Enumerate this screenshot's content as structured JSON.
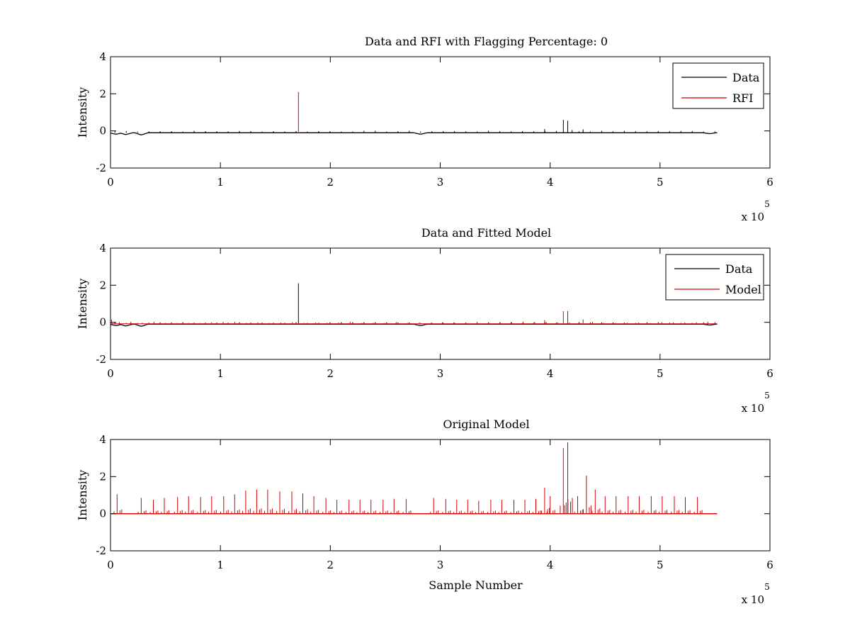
{
  "chart_data": [
    {
      "type": "line",
      "title": "Data and RFI with Flagging Percentage: 0",
      "xlabel": "",
      "ylabel": "Intensity",
      "xlim": [
        0,
        600000
      ],
      "ylim": [
        -2,
        4
      ],
      "x_ticks": [
        "0",
        "1",
        "2",
        "3",
        "4",
        "5",
        "6"
      ],
      "y_ticks": [
        "-2",
        "0",
        "2",
        "4"
      ],
      "x_multiplier": {
        "base": "x 10",
        "exponent": "5"
      },
      "grid": false,
      "legend": "top-right",
      "series": [
        {
          "name": "Data",
          "color": "#000000",
          "baseline": -0.1,
          "x_end": 552000,
          "dips": [
            [
              5000,
              -0.18
            ],
            [
              14000,
              -0.2
            ],
            [
              28000,
              -0.22
            ],
            [
              282000,
              -0.18
            ],
            [
              545000,
              -0.15
            ]
          ],
          "spikes": [
            [
              412000,
              0.6
            ],
            [
              416000,
              0.55
            ],
            [
              395000,
              0.1
            ],
            [
              420000,
              0.05
            ],
            [
              430000,
              0.08
            ]
          ]
        },
        {
          "name": "RFI",
          "color": "#d40000",
          "spikes": [
            [
              171000,
              2.1
            ]
          ]
        }
      ]
    },
    {
      "type": "line",
      "title": "Data and Fitted Model",
      "xlabel": "",
      "ylabel": "Intensity",
      "xlim": [
        0,
        600000
      ],
      "ylim": [
        -2,
        4
      ],
      "x_ticks": [
        "0",
        "1",
        "2",
        "3",
        "4",
        "5",
        "6"
      ],
      "y_ticks": [
        "-2",
        "0",
        "2",
        "4"
      ],
      "x_multiplier": {
        "base": "x 10",
        "exponent": "5"
      },
      "grid": false,
      "legend": "top-right",
      "series": [
        {
          "name": "Data",
          "color": "#000000",
          "baseline": -0.1,
          "x_end": 552000,
          "dips": [
            [
              5000,
              -0.18
            ],
            [
              14000,
              -0.2
            ],
            [
              28000,
              -0.22
            ],
            [
              282000,
              -0.18
            ],
            [
              545000,
              -0.15
            ]
          ],
          "spikes": [
            [
              171000,
              2.1
            ]
          ]
        },
        {
          "name": "Model",
          "color": "#d40000",
          "spikes": [
            [
              412000,
              0.6
            ],
            [
              416000,
              0.6
            ],
            [
              395000,
              0.12
            ],
            [
              430000,
              0.15
            ],
            [
              1000,
              0.15
            ]
          ]
        }
      ]
    },
    {
      "type": "line",
      "title": "Original Model",
      "xlabel": "Sample Number",
      "ylabel": "Intensity",
      "xlim": [
        0,
        600000
      ],
      "ylim": [
        -2,
        4
      ],
      "x_ticks": [
        "0",
        "1",
        "2",
        "3",
        "4",
        "5",
        "6"
      ],
      "y_ticks": [
        "-2",
        "0",
        "2",
        "4"
      ],
      "x_multiplier": {
        "base": "x 10",
        "exponent": "5"
      },
      "grid": false,
      "legend": "none",
      "series": [
        {
          "color": "#d40000",
          "baseline": 0,
          "x_end": 552000,
          "spikes": [
            [
              6000,
              1.05
            ],
            [
              28000,
              0.85
            ],
            [
              39000,
              0.75
            ],
            [
              49000,
              0.85
            ],
            [
              61000,
              0.9
            ],
            [
              71000,
              0.95
            ],
            [
              82000,
              0.9
            ],
            [
              92000,
              0.95
            ],
            [
              103000,
              0.95
            ],
            [
              113000,
              1.05
            ],
            [
              123000,
              1.25
            ],
            [
              133000,
              1.3
            ],
            [
              143000,
              1.3
            ],
            [
              154000,
              1.2
            ],
            [
              165000,
              1.2
            ],
            [
              175000,
              1.1
            ],
            [
              185000,
              0.95
            ],
            [
              196000,
              0.85
            ],
            [
              206000,
              0.75
            ],
            [
              217000,
              0.75
            ],
            [
              227000,
              0.75
            ],
            [
              237000,
              0.75
            ],
            [
              248000,
              0.75
            ],
            [
              258000,
              0.8
            ],
            [
              269000,
              0.8
            ],
            [
              294000,
              0.85
            ],
            [
              305000,
              0.8
            ],
            [
              315000,
              0.75
            ],
            [
              325000,
              0.75
            ],
            [
              335000,
              0.7
            ],
            [
              346000,
              0.75
            ],
            [
              356000,
              0.75
            ],
            [
              367000,
              0.75
            ],
            [
              377000,
              0.75
            ],
            [
              387000,
              0.8
            ],
            [
              395000,
              1.4
            ],
            [
              400000,
              0.95
            ],
            [
              412000,
              3.55
            ],
            [
              416000,
              3.85
            ],
            [
              425000,
              0.95
            ],
            [
              433000,
              2.05
            ],
            [
              441000,
              1.3
            ],
            [
              450000,
              0.95
            ],
            [
              460000,
              0.95
            ],
            [
              471000,
              0.95
            ],
            [
              481000,
              0.95
            ],
            [
              492000,
              0.95
            ],
            [
              502000,
              0.95
            ],
            [
              513000,
              0.95
            ],
            [
              523000,
              0.9
            ],
            [
              534000,
              0.9
            ]
          ]
        }
      ]
    }
  ]
}
